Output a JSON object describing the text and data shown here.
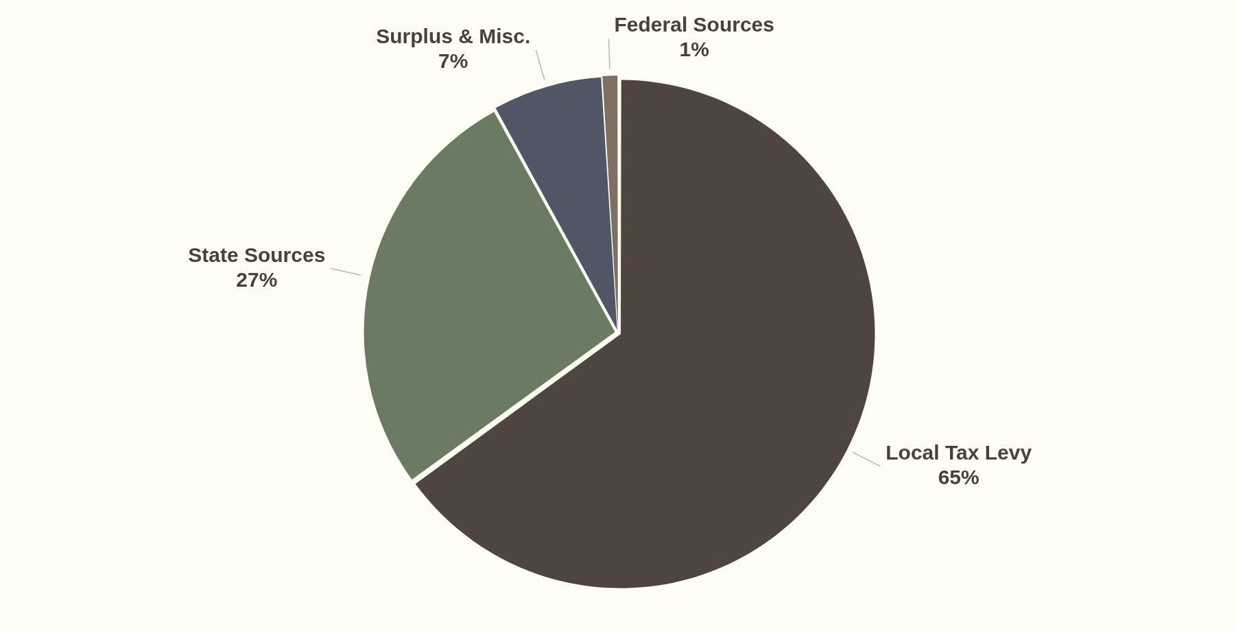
{
  "chart_data": {
    "type": "pie",
    "categories": [
      "Local Tax Levy",
      "State Sources",
      "Surplus & Misc.",
      "Federal Sources"
    ],
    "values": [
      65,
      27,
      7,
      1
    ],
    "colors": [
      "#4f4540",
      "#6b7a63",
      "#4f5666",
      "#7f6f62"
    ],
    "value_labels": [
      "65%",
      "27%",
      "7%",
      "1%"
    ],
    "legend": false
  }
}
